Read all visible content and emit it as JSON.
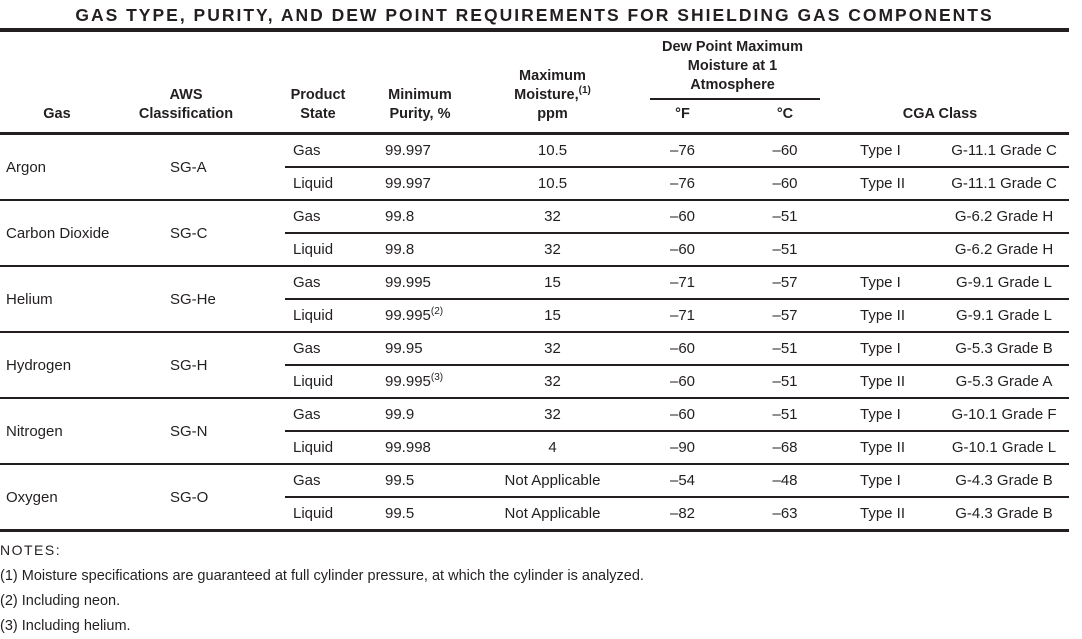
{
  "title": "GAS TYPE, PURITY, AND DEW POINT REQUIREMENTS FOR SHIELDING GAS COMPONENTS",
  "colors": {
    "ink": "#231f20",
    "background": "#ffffff"
  },
  "table": {
    "headers": {
      "gas": "Gas",
      "aws_classification": [
        "AWS",
        "Classification"
      ],
      "product_state": [
        "Product",
        "State"
      ],
      "minimum_purity": [
        "Minimum",
        "Purity, %"
      ],
      "maximum_moisture": [
        "Maximum",
        "Moisture,",
        "ppm"
      ],
      "maximum_moisture_sup": "(1)",
      "dew_point_group": [
        "Dew Point Maximum",
        "Moisture at 1",
        "Atmosphere"
      ],
      "deg_f": "°F",
      "deg_c": "°C",
      "cga_class": "CGA Class"
    },
    "groups": [
      {
        "gas": "Argon",
        "aws": "SG-A",
        "rows": [
          {
            "state": "Gas",
            "purity": "99.997",
            "purity_sup": "",
            "moisture": "10.5",
            "f": "–76",
            "c": "–60",
            "type": "Type I",
            "grade": "G-11.1 Grade C"
          },
          {
            "state": "Liquid",
            "purity": "99.997",
            "purity_sup": "",
            "moisture": "10.5",
            "f": "–76",
            "c": "–60",
            "type": "Type II",
            "grade": "G-11.1 Grade C"
          }
        ]
      },
      {
        "gas": "Carbon Dioxide",
        "aws": "SG-C",
        "rows": [
          {
            "state": "Gas",
            "purity": "99.8",
            "purity_sup": "",
            "moisture": "32",
            "f": "–60",
            "c": "–51",
            "type": "",
            "grade": "G-6.2 Grade H"
          },
          {
            "state": "Liquid",
            "purity": "99.8",
            "purity_sup": "",
            "moisture": "32",
            "f": "–60",
            "c": "–51",
            "type": "",
            "grade": "G-6.2 Grade H"
          }
        ]
      },
      {
        "gas": "Helium",
        "aws": "SG-He",
        "rows": [
          {
            "state": "Gas",
            "purity": "99.995",
            "purity_sup": "",
            "moisture": "15",
            "f": "–71",
            "c": "–57",
            "type": "Type I",
            "grade": "G-9.1 Grade L"
          },
          {
            "state": "Liquid",
            "purity": "99.995",
            "purity_sup": "(2)",
            "moisture": "15",
            "f": "–71",
            "c": "–57",
            "type": "Type II",
            "grade": "G-9.1 Grade L"
          }
        ]
      },
      {
        "gas": "Hydrogen",
        "aws": "SG-H",
        "rows": [
          {
            "state": "Gas",
            "purity": "99.95",
            "purity_sup": "",
            "moisture": "32",
            "f": "–60",
            "c": "–51",
            "type": "Type I",
            "grade": "G-5.3 Grade B"
          },
          {
            "state": "Liquid",
            "purity": "99.995",
            "purity_sup": "(3)",
            "moisture": "32",
            "f": "–60",
            "c": "–51",
            "type": "Type II",
            "grade": "G-5.3 Grade A"
          }
        ]
      },
      {
        "gas": "Nitrogen",
        "aws": "SG-N",
        "rows": [
          {
            "state": "Gas",
            "purity": "99.9",
            "purity_sup": "",
            "moisture": "32",
            "f": "–60",
            "c": "–51",
            "type": "Type I",
            "grade": "G-10.1 Grade F"
          },
          {
            "state": "Liquid",
            "purity": "99.998",
            "purity_sup": "",
            "moisture": "4",
            "f": "–90",
            "c": "–68",
            "type": "Type II",
            "grade": "G-10.1 Grade L"
          }
        ]
      },
      {
        "gas": "Oxygen",
        "aws": "SG-O",
        "rows": [
          {
            "state": "Gas",
            "purity": "99.5",
            "purity_sup": "",
            "moisture": "Not Applicable",
            "f": "–54",
            "c": "–48",
            "type": "Type I",
            "grade": "G-4.3 Grade B"
          },
          {
            "state": "Liquid",
            "purity": "99.5",
            "purity_sup": "",
            "moisture": "Not Applicable",
            "f": "–82",
            "c": "–63",
            "type": "Type II",
            "grade": "G-4.3 Grade B"
          }
        ]
      }
    ]
  },
  "notes": {
    "label": "NOTES:",
    "items": [
      "(1) Moisture specifications are guaranteed at full cylinder pressure, at which the cylinder is analyzed.",
      "(2) Including neon.",
      "(3) Including helium."
    ]
  }
}
